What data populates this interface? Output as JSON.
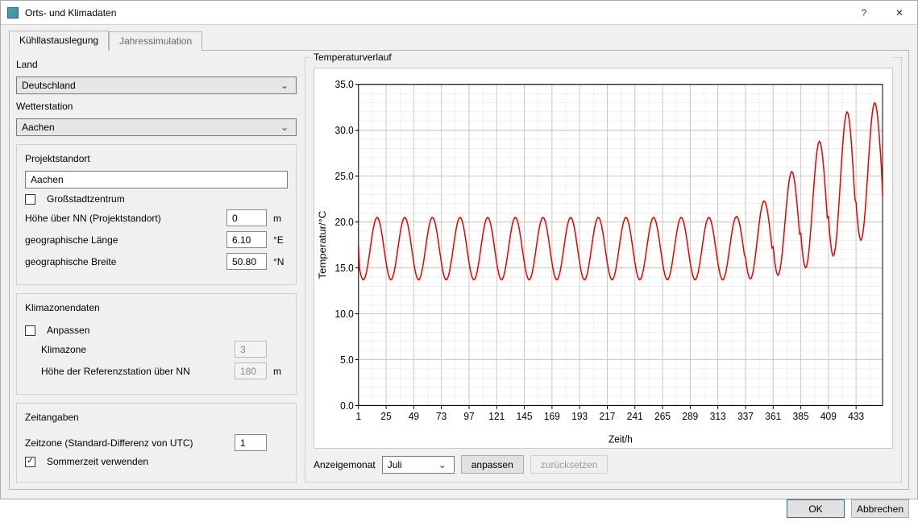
{
  "window": {
    "title": "Orts- und Klimadaten",
    "help_glyph": "?",
    "close_glyph": "✕"
  },
  "tabs": {
    "active": "Kühllastauslegung",
    "inactive": "Jahressimulation"
  },
  "left": {
    "land_label": "Land",
    "land_value": "Deutschland",
    "station_label": "Wetterstation",
    "station_value": "Aachen",
    "projekt": {
      "legend": "Projektstandort",
      "name": "Aachen",
      "grossstadt_label": "Großstadtzentrum",
      "grossstadt_checked": false,
      "hoehe_label": "Höhe über NN (Projektstandort)",
      "hoehe_value": "0",
      "hoehe_unit": "m",
      "laenge_label": "geographische Länge",
      "laenge_value": "6.10",
      "laenge_unit": "°E",
      "breite_label": "geographische Breite",
      "breite_value": "50.80",
      "breite_unit": "°N"
    },
    "klima": {
      "legend": "Klimazonendaten",
      "anpassen_label": "Anpassen",
      "anpassen_checked": false,
      "zone_label": "Klimazone",
      "zone_value": "3",
      "refhoehe_label": "Höhe der Referenzstation über NN",
      "refhoehe_value": "180",
      "refhoehe_unit": "m"
    },
    "zeit": {
      "legend": "Zeitangaben",
      "tz_label": "Zeitzone (Standard-Differenz von UTC)",
      "tz_value": "1",
      "sommerzeit_label": "Sommerzeit verwenden",
      "sommerzeit_checked": true
    }
  },
  "chart": {
    "legend": "Temperaturverlauf",
    "type": "line",
    "xlabel": "Zeit/h",
    "ylabel": "Temperatur/°C",
    "xlim": [
      1,
      456
    ],
    "ylim": [
      0.0,
      35.0
    ],
    "ytick_step": 5.0,
    "yticks": [
      "0.0",
      "5.0",
      "10.0",
      "15.0",
      "20.0",
      "25.0",
      "30.0",
      "35.0"
    ],
    "xticks": [
      1,
      25,
      49,
      73,
      97,
      121,
      145,
      169,
      193,
      217,
      241,
      265,
      289,
      313,
      337,
      361,
      385,
      409,
      433
    ],
    "minor_x_step": 12,
    "minor_y_count": 4,
    "line_color": "#e60000",
    "line_width": 1.5,
    "grid_color": "#c8c8c8",
    "axis_color": "#000000",
    "background_color": "#ffffff",
    "label_fontsize": 12,
    "tick_fontsize": 11,
    "series": {
      "daily_min": [
        13.7,
        13.7,
        13.7,
        13.7,
        13.7,
        13.7,
        13.7,
        13.7,
        13.7,
        13.7,
        13.7,
        13.7,
        13.7,
        13.7,
        13.8,
        14.2,
        15.0,
        16.3,
        18.0
      ],
      "daily_max": [
        20.5,
        20.5,
        20.5,
        20.5,
        20.5,
        20.5,
        20.5,
        20.5,
        20.5,
        20.5,
        20.5,
        20.5,
        20.5,
        20.6,
        22.3,
        25.5,
        28.8,
        32.0,
        33.0
      ],
      "period_hours": 24,
      "start_value": 17.5,
      "end_value": 22.8
    }
  },
  "footer": {
    "anzeigemonat_label": "Anzeigemonat",
    "anzeigemonat_value": "Juli",
    "anpassen_btn": "anpassen",
    "zuruecksetzen_btn": "zurücksetzen"
  },
  "dialog": {
    "ok": "OK",
    "cancel": "Abbrechen"
  }
}
